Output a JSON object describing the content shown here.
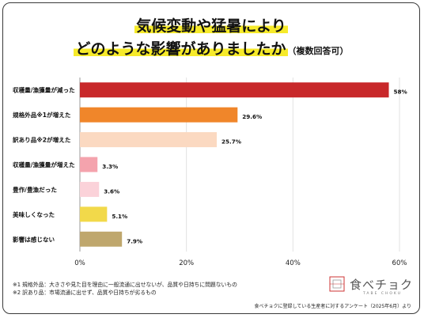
{
  "title": {
    "line1": "気候変動や猛暑により",
    "line2_main": "どのような影響がありましたか",
    "line2_suffix": "（複数回答可）"
  },
  "footnotes": [
    "※1 規格外品：大きさや見た目を理由に一般流通に出せないが、品質や日持ちに問題ないもの",
    "※2 訳あり品：市場流通に出せず、品質や日持ちが劣るもの"
  ],
  "logo": {
    "name": "食べチョク",
    "sub": "TABE CHOKU"
  },
  "source": "食べチョクに登録している生産者に対するアンケート（2025年6月）より",
  "chart_data": {
    "type": "bar",
    "orientation": "horizontal",
    "categories": [
      "収穫量/漁獲量が減った",
      "規格外品※1が増えた",
      "訳あり品※2が増えた",
      "収穫量/漁獲量が増えた",
      "豊作/豊漁だった",
      "美味しくなった",
      "影響は感じない"
    ],
    "values": [
      58,
      29.6,
      25.7,
      3.3,
      3.6,
      5.1,
      7.9
    ],
    "value_labels": [
      "58%",
      "29.6%",
      "25.7%",
      "3.3%",
      "3.6%",
      "5.1%",
      "7.9%"
    ],
    "colors": [
      "#c8282a",
      "#f0862a",
      "#fbd9c1",
      "#f4a3ad",
      "#fbd2d9",
      "#f2d94a",
      "#bfa76d"
    ],
    "xlim": [
      0,
      60
    ],
    "xticks": [
      0,
      20,
      40,
      60
    ],
    "xtick_labels": [
      "0%",
      "20%",
      "40%",
      "60%"
    ],
    "grid": "vertical",
    "legend": "none"
  }
}
